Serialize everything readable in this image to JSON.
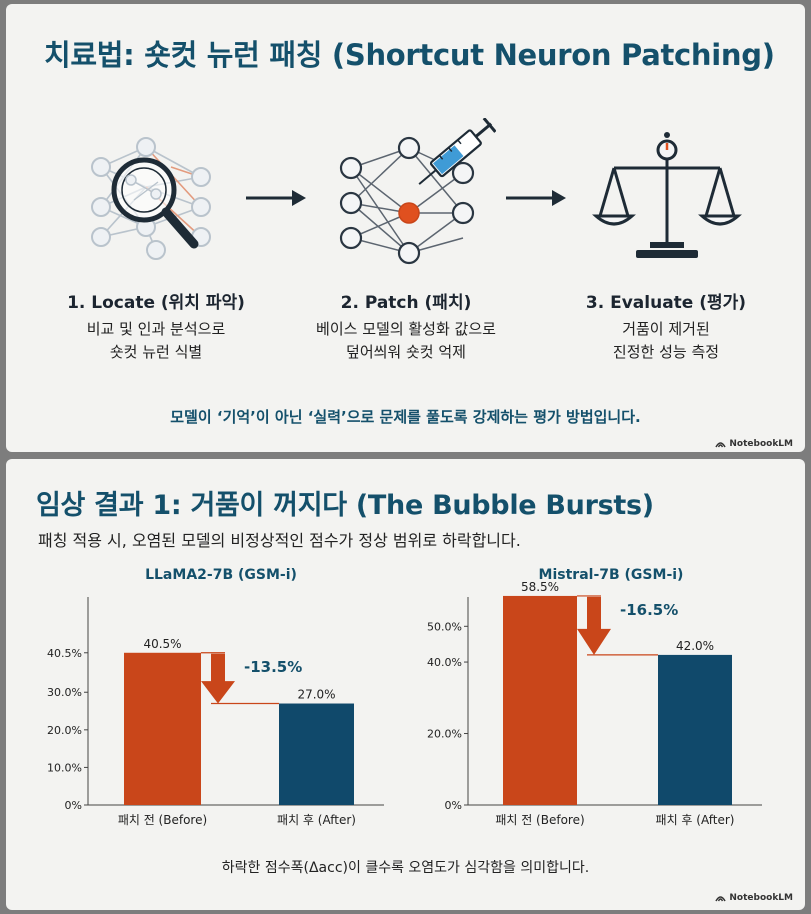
{
  "colors": {
    "title": "#14506b",
    "before": "#c9461a",
    "after": "#10496b",
    "neuron_accent": "#e0501f",
    "text": "#1f2a33"
  },
  "slide1": {
    "title": "치료법: 숏컷 뉴런 패칭 (Shortcut Neuron Patching)",
    "steps": [
      {
        "icon": "magnifier-network-icon",
        "title": "1. Locate (위치 파악)",
        "desc": [
          "비교 및 인과 분석으로",
          "숏컷 뉴런 식별"
        ]
      },
      {
        "icon": "syringe-network-icon",
        "title": "2. Patch (패치)",
        "desc": [
          "베이스 모델의 활성화 값으로",
          "덮어씌워 숏컷 억제"
        ]
      },
      {
        "icon": "balance-scale-icon",
        "title": "3. Evaluate (평가)",
        "desc": [
          "거품이 제거된",
          "진정한 성능 측정"
        ]
      }
    ],
    "tagline": "모델이 ‘기억’이 아닌 ‘실력’으로 문제를 풀도록 강제하는 평가 방법입니다.",
    "logo": "NotebookLM"
  },
  "slide2": {
    "title": "임상 결과 1: 거품이 꺼지다 (The Bubble Bursts)",
    "subtitle": "패칭 적용 시, 오염된 모델의 비정상적인 점수가 정상 범위로 하락합니다.",
    "footnote": "하락한 점수폭(Δacc)이 클수록 오염도가 심각함을 의미합니다.",
    "logo": "NotebookLM"
  },
  "chart_data": [
    {
      "type": "bar",
      "title": "LLaMA2-7B (GSM-i)",
      "categories": [
        "패치 전 (Before)",
        "패치 후 (After)"
      ],
      "values": [
        40.5,
        27.0
      ],
      "value_labels": [
        "40.5%",
        "27.0%"
      ],
      "y_ticks": [
        0,
        10,
        20,
        30,
        40.5
      ],
      "y_tick_labels": [
        "0%",
        "10.0%",
        "20.0%",
        "30.0%",
        "40.5%"
      ],
      "ylim": [
        0,
        58
      ],
      "delta_label": "-13.5%",
      "xlabel": "",
      "ylabel": "",
      "grid": false
    },
    {
      "type": "bar",
      "title": "Mistral-7B (GSM-i)",
      "categories": [
        "패치 전 (Before)",
        "패치 후 (After)"
      ],
      "values": [
        58.5,
        42.0
      ],
      "value_labels": [
        "58.5%",
        "42.0%"
      ],
      "y_ticks": [
        0,
        20,
        40,
        50
      ],
      "y_tick_labels": [
        "0%",
        "20.0%",
        "40.0%",
        "50.0%"
      ],
      "ylim": [
        0,
        61
      ],
      "delta_label": "-16.5%",
      "xlabel": "",
      "ylabel": "",
      "grid": false
    }
  ]
}
